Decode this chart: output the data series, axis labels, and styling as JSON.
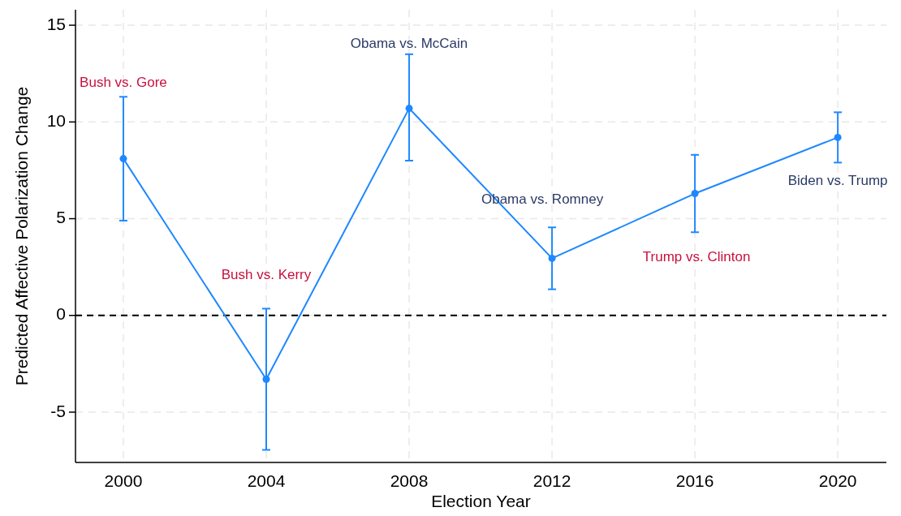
{
  "chart_data": {
    "type": "line",
    "xlabel": "Election Year",
    "ylabel": "Predicted Affective Polarization Change",
    "x": [
      2000,
      2004,
      2008,
      2012,
      2016,
      2020
    ],
    "series": [
      {
        "color": "#1e88ff",
        "values": [
          8.1,
          -3.3,
          10.7,
          2.95,
          6.3,
          9.2
        ],
        "errors": [
          [
            4.9,
            11.3
          ],
          [
            -6.95,
            0.35
          ],
          [
            8.0,
            13.5
          ],
          [
            1.35,
            4.55
          ],
          [
            4.3,
            8.3
          ],
          [
            7.9,
            10.5
          ]
        ]
      }
    ],
    "xlim": [
      1998.66,
      2021.36
    ],
    "xticks": [
      2000,
      2004,
      2008,
      2012,
      2016,
      2020
    ],
    "ylim": [
      -7.6,
      15.8
    ],
    "yticks": [
      -5,
      0,
      5,
      10,
      15
    ],
    "grid": true,
    "marker": "circle",
    "line_style": "solid",
    "ref_lines": [
      {
        "axis": "y",
        "value": 0,
        "color": "#000000",
        "line_style": "dashed"
      }
    ],
    "annotations": [
      "Bush vs. Gore",
      "Bush vs. Kerry",
      "Obama vs. McCain",
      "Obama vs. Romney",
      "Trump vs. Clinton",
      "Biden vs. Trump"
    ]
  }
}
